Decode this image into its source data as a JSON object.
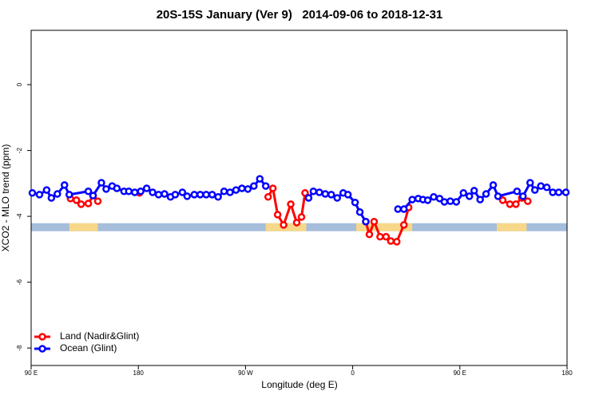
{
  "chart_data": {
    "type": "line",
    "title": "20S-15S January (Ver 9)   2014-09-06 to 2018-12-31",
    "xlabel": "Longitude (deg E)",
    "ylabel": "XCO2 - MLO trend (ppm)",
    "xlim": [
      90,
      540
    ],
    "xticks": [
      {
        "value": 90,
        "label": "90 E"
      },
      {
        "value": 180,
        "label": "180"
      },
      {
        "value": 270,
        "label": "90 W"
      },
      {
        "value": 360,
        "label": "0"
      },
      {
        "value": 450,
        "label": "90 E"
      },
      {
        "value": 540,
        "label": "180"
      }
    ],
    "ylim": [
      -8.53,
      1.65
    ],
    "yticks": [
      0,
      -2,
      -4,
      -6,
      -8
    ],
    "legend": "bottom-left",
    "surface_band": {
      "y": -4.33,
      "ocean_color": "#a6bddb",
      "land_color": "#f7d889",
      "land_spans": [
        [
          122,
          146
        ],
        [
          287,
          321
        ],
        [
          363,
          410
        ],
        [
          481,
          506
        ]
      ]
    },
    "series": [
      {
        "name": "Land (Nadir&Glint)",
        "color": "#ff0000",
        "x": [
          123,
          128,
          132,
          138,
          142,
          146,
          null,
          181,
          null,
          289,
          293,
          297,
          302,
          308,
          313,
          317,
          320,
          null,
          371,
          374,
          378,
          383,
          388,
          392,
          397,
          403,
          407,
          null,
          486,
          492,
          497,
          502,
          507
        ],
        "values": [
          -3.46,
          -3.51,
          -3.63,
          -3.61,
          -3.37,
          -3.54,
          null,
          -3.29,
          null,
          -3.41,
          -3.15,
          -3.95,
          -4.26,
          -3.63,
          -4.19,
          -4.02,
          -3.29,
          null,
          -4.16,
          -4.55,
          -4.16,
          -4.62,
          -4.62,
          -4.75,
          -4.77,
          -4.26,
          -3.73,
          null,
          -3.51,
          -3.63,
          -3.63,
          -3.44,
          -3.54
        ]
      },
      {
        "name": "Ocean (Glint)",
        "color": "#0000ff",
        "x": [
          91,
          97,
          103,
          107,
          112,
          118,
          122,
          138,
          142,
          149,
          153,
          158,
          162,
          168,
          172,
          177,
          182,
          187,
          192,
          197,
          202,
          207,
          211,
          217,
          221,
          227,
          232,
          237,
          242,
          247,
          252,
          257,
          262,
          267,
          272,
          277,
          282,
          287,
          null,
          323,
          327,
          332,
          337,
          342,
          347,
          352,
          356,
          362,
          366,
          371,
          null,
          398,
          403,
          410,
          415,
          419,
          423,
          428,
          433,
          437,
          442,
          447,
          453,
          458,
          462,
          467,
          472,
          478,
          482,
          498,
          503,
          509,
          513,
          518,
          523,
          528,
          533,
          539
        ],
        "values": [
          -3.29,
          -3.34,
          -3.2,
          -3.44,
          -3.32,
          -3.05,
          -3.34,
          -3.24,
          -3.37,
          -2.98,
          -3.17,
          -3.08,
          -3.15,
          -3.24,
          -3.24,
          -3.27,
          -3.24,
          -3.15,
          -3.27,
          -3.34,
          -3.32,
          -3.41,
          -3.34,
          -3.27,
          -3.39,
          -3.34,
          -3.34,
          -3.34,
          -3.34,
          -3.41,
          -3.24,
          -3.27,
          -3.2,
          -3.15,
          -3.17,
          -3.08,
          -2.86,
          -3.08,
          null,
          -3.44,
          -3.24,
          -3.27,
          -3.32,
          -3.34,
          -3.44,
          -3.29,
          -3.34,
          -3.58,
          -3.87,
          -4.16,
          null,
          -3.78,
          -3.78,
          -3.49,
          -3.46,
          -3.49,
          -3.51,
          -3.41,
          -3.46,
          -3.56,
          -3.54,
          -3.56,
          -3.29,
          -3.39,
          -3.22,
          -3.49,
          -3.32,
          -3.05,
          -3.39,
          -3.24,
          -3.39,
          -2.98,
          -3.2,
          -3.08,
          -3.12,
          -3.27,
          -3.27,
          -3.27
        ]
      }
    ]
  }
}
